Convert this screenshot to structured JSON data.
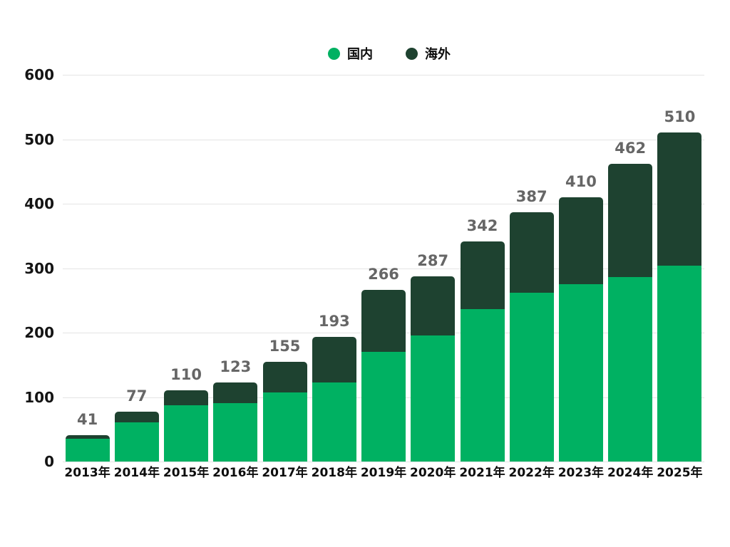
{
  "legend": {
    "domestic_label": "国内",
    "overseas_label": "海外"
  },
  "colors": {
    "domestic": "#00B162",
    "overseas": "#1E4230",
    "grid": "#E4E4E4",
    "total_label": "#666666",
    "axis_text": "#141414"
  },
  "chart_data": {
    "type": "bar",
    "stacked": true,
    "title": "",
    "xlabel": "",
    "ylabel": "",
    "categories": [
      "2013年",
      "2014年",
      "2015年",
      "2016年",
      "2017年",
      "2018年",
      "2019年",
      "2020年",
      "2021年",
      "2022年",
      "2023年",
      "2024年",
      "2025年"
    ],
    "series": [
      {
        "name": "国内",
        "color": "#00B162",
        "values": [
          35,
          61,
          87,
          91,
          107,
          123,
          170,
          196,
          236,
          262,
          275,
          286,
          304
        ]
      },
      {
        "name": "海外",
        "color": "#1E4230",
        "values": [
          6,
          16,
          23,
          32,
          48,
          70,
          96,
          91,
          106,
          125,
          135,
          176,
          206
        ]
      }
    ],
    "totals": [
      41,
      77,
      110,
      123,
      155,
      193,
      266,
      287,
      342,
      387,
      410,
      462,
      510
    ],
    "ylim": [
      0,
      600
    ],
    "yticks": [
      0,
      100,
      200,
      300,
      400,
      500,
      600
    ],
    "grid": true,
    "legend_position": "top-center"
  }
}
